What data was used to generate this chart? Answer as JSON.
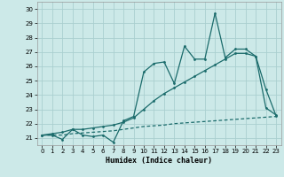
{
  "xlabel": "Humidex (Indice chaleur)",
  "bg_color": "#cce9e8",
  "grid_color": "#aacfcf",
  "line_color": "#1a6b6b",
  "xlim": [
    -0.5,
    23.5
  ],
  "ylim": [
    20.5,
    30.5
  ],
  "xticks": [
    0,
    1,
    2,
    3,
    4,
    5,
    6,
    7,
    8,
    9,
    10,
    11,
    12,
    13,
    14,
    15,
    16,
    17,
    18,
    19,
    20,
    21,
    22,
    23
  ],
  "yticks": [
    21,
    22,
    23,
    24,
    25,
    26,
    27,
    28,
    29,
    30
  ],
  "x": [
    0,
    1,
    2,
    3,
    4,
    5,
    6,
    7,
    8,
    9,
    10,
    11,
    12,
    13,
    14,
    15,
    16,
    17,
    18,
    19,
    20,
    21,
    22,
    23
  ],
  "y_jagged": [
    21.2,
    21.2,
    20.9,
    21.6,
    21.2,
    21.1,
    21.2,
    20.7,
    22.2,
    22.5,
    25.6,
    26.2,
    26.3,
    24.8,
    27.4,
    26.5,
    26.5,
    29.7,
    26.6,
    27.2,
    27.2,
    26.7,
    23.1,
    22.6
  ],
  "y_upper": [
    21.2,
    21.3,
    21.4,
    21.6,
    21.6,
    21.7,
    21.8,
    21.9,
    22.1,
    22.4,
    23.0,
    23.6,
    24.1,
    24.5,
    24.9,
    25.3,
    25.7,
    26.1,
    26.5,
    26.9,
    26.9,
    26.7,
    24.4,
    22.55
  ],
  "y_lower": [
    21.2,
    21.2,
    21.2,
    21.3,
    21.35,
    21.4,
    21.45,
    21.5,
    21.6,
    21.7,
    21.8,
    21.85,
    21.9,
    22.0,
    22.05,
    22.1,
    22.15,
    22.2,
    22.25,
    22.3,
    22.35,
    22.4,
    22.45,
    22.5
  ]
}
